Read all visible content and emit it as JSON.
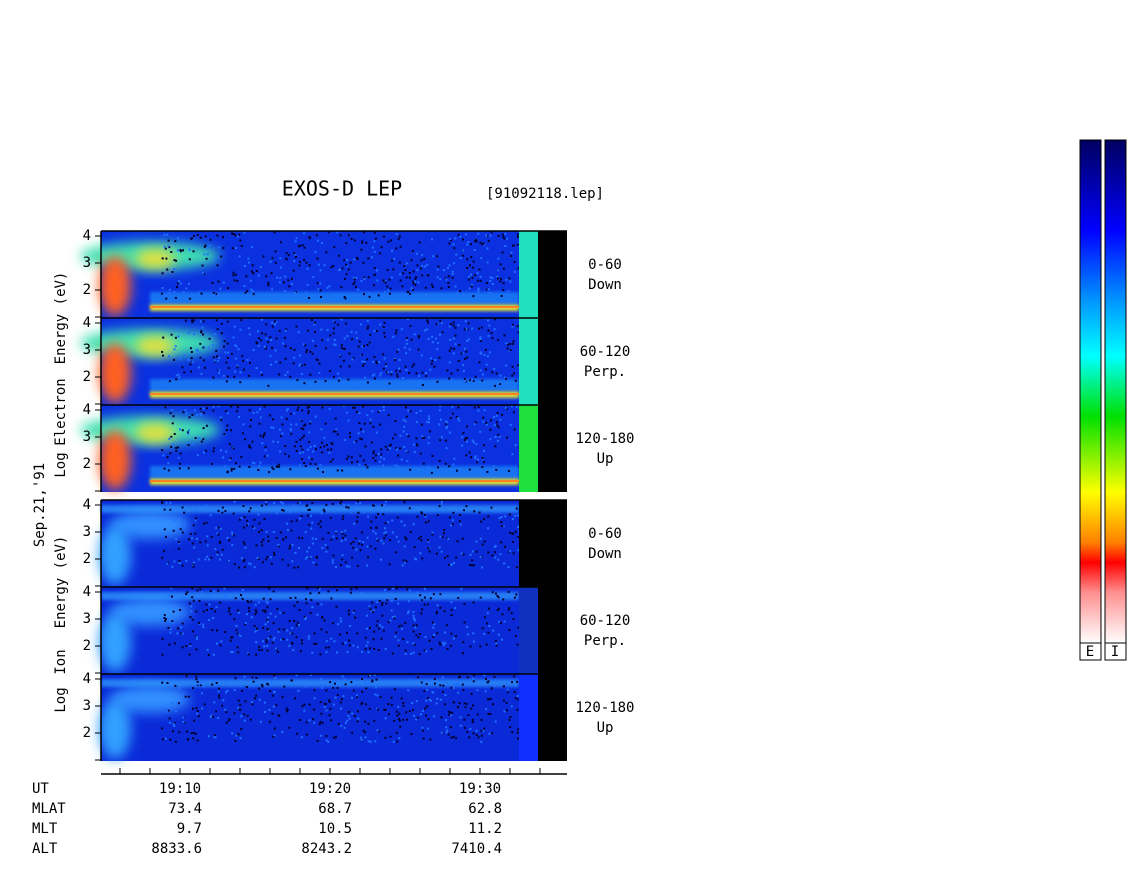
{
  "header": {
    "title": "EXOS-D LEP",
    "file": "[91092118.lep]"
  },
  "date": "Sep.21,'91",
  "energy_ticks": [
    4,
    3,
    2
  ],
  "panels": [
    {
      "ylabel": [
        "Log",
        "Electron",
        "Energy (eV)"
      ],
      "channels": [
        {
          "range": "0-60",
          "direction": "Down"
        },
        {
          "range": "60-120",
          "direction": "Perp."
        },
        {
          "range": "120-180",
          "direction": "Up"
        }
      ]
    },
    {
      "ylabel": [
        "Log",
        "Ion",
        "Energy (eV)"
      ],
      "channels": [
        {
          "range": "0-60",
          "direction": "Down"
        },
        {
          "range": "60-120",
          "direction": "Perp."
        },
        {
          "range": "120-180",
          "direction": "Up"
        }
      ]
    }
  ],
  "time_axis": {
    "label": "UT",
    "ticks": [
      "19:10",
      "19:20",
      "19:30"
    ]
  },
  "ephemeris": [
    {
      "label": "MLAT",
      "values": [
        73.4,
        68.7,
        62.8
      ]
    },
    {
      "label": "MLT",
      "values": [
        9.7,
        10.5,
        11.2
      ]
    },
    {
      "label": "ALT",
      "values": [
        8833.6,
        8243.2,
        7410.4
      ]
    }
  ],
  "colorbars": [
    "E",
    "I"
  ]
}
